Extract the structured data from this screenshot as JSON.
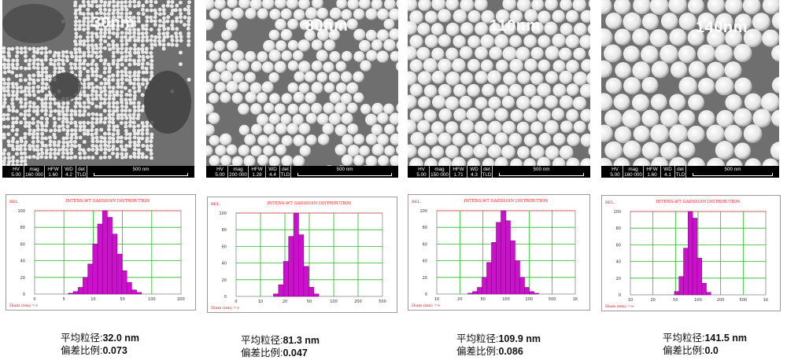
{
  "samples": [
    {
      "sem_label": "30nm",
      "databar": {
        "hv_label": "HV",
        "hv": "5.00 kV",
        "mag_label": "mag",
        "mag": "160 000 x",
        "hfw_label": "HFW",
        "hfw": "1.60 µm",
        "wd_label": "WD",
        "wd": "4.2 mm",
        "det_label": "det",
        "det": "TLD",
        "scale": "500 nm"
      },
      "hist": {
        "title": "INTENS-WT GAUSSIAN DISTRIBUTION",
        "yaxis_label": "REL.",
        "y_ticks": [
          "100",
          "80",
          "60",
          "40",
          "20",
          "0"
        ],
        "x_ticks": [
          "0",
          "5",
          "10",
          "50",
          "100",
          "200"
        ],
        "x_label": "Diam (nm) =>",
        "values": [
          1,
          3,
          8,
          20,
          36,
          60,
          84,
          100,
          92,
          72,
          48,
          28,
          14,
          5,
          2
        ]
      },
      "stats": {
        "mean_label": "平均粒径:",
        "mean_value": "32.0 nm",
        "dev_label": "偏差比例:",
        "dev_value": "0.073"
      }
    },
    {
      "sem_label": "80nm",
      "databar": {
        "hv_label": "HV",
        "hv": "5.00 kV",
        "mag_label": "mag",
        "mag": "200 000 x",
        "hfw_label": "HFW",
        "hfw": "1.28 µm",
        "wd_label": "WD",
        "wd": "4.4 mm",
        "det_label": "det",
        "det": "TLD",
        "scale": "500 nm"
      },
      "hist": {
        "title": "INTENS-WT GAUSSIAN DISTRIBUTION",
        "yaxis_label": "REL.",
        "y_ticks": [
          "100",
          "80",
          "60",
          "40",
          "20",
          "0"
        ],
        "x_ticks": [
          "0",
          "10",
          "20",
          "50",
          "100",
          "200",
          "500"
        ],
        "x_label": "Diam (nm) =>",
        "values": [
          3,
          14,
          42,
          72,
          100,
          74,
          36,
          11,
          3
        ]
      },
      "stats": {
        "mean_label": "平均粒径:",
        "mean_value": "81.3 nm",
        "dev_label": "偏差比例:",
        "dev_value": "0.047"
      }
    },
    {
      "sem_label": "110nm",
      "databar": {
        "hv_label": "HV",
        "hv": "5.00 kV",
        "mag_label": "mag",
        "mag": "150 000 x",
        "hfw_label": "HFW",
        "hfw": "1.71 µm",
        "wd_label": "WD",
        "wd": "4.3 mm",
        "det_label": "det",
        "det": "TLD",
        "scale": "500 nm"
      },
      "hist": {
        "title": "INTENS-WT GAUSSIAN DISTRIBUTION",
        "yaxis_label": "REL.",
        "y_ticks": [
          "100",
          "80",
          "60",
          "40",
          "20",
          "0"
        ],
        "x_ticks": [
          "10",
          "20",
          "50",
          "100",
          "200",
          "500",
          "1K"
        ],
        "x_label": "Diam (nm) =>",
        "values": [
          1,
          3,
          8,
          20,
          38,
          62,
          86,
          100,
          88,
          64,
          40,
          20,
          8,
          3,
          1
        ]
      },
      "stats": {
        "mean_label": "平均粒径:",
        "mean_value": "109.9 nm",
        "dev_label": "偏差比例:",
        "dev_value": "0.086"
      }
    },
    {
      "sem_label": "140nm",
      "databar": {
        "hv_label": "HV",
        "hv": "5.00 kV",
        "mag_label": "mag",
        "mag": "160 000 x",
        "hfw_label": "HFW",
        "hfw": "1.60 µm",
        "wd_label": "WD",
        "wd": "4.1 mm",
        "det_label": "det",
        "det": "TLD",
        "scale": "500 nm"
      },
      "hist": {
        "title": "INTENS-WT GAUSSIAN DISTRIBUTION",
        "yaxis_label": "REL.",
        "y_ticks": [
          "100",
          "80",
          "60",
          "40",
          "20",
          "0"
        ],
        "x_ticks": [
          "10",
          "20",
          "50",
          "100",
          "200",
          "500",
          "1K"
        ],
        "x_label": "Diam (nm) =>",
        "values": [
          4,
          22,
          56,
          100,
          92,
          44,
          14,
          3
        ]
      },
      "stats": {
        "mean_label": "平均粒径:",
        "mean_value": "141.5 nm",
        "dev_label": "偏差比例:",
        "dev_value": "0.0"
      }
    }
  ],
  "colors": {
    "bar": "#cc11cc",
    "bar_stroke": "#7a007a",
    "grid": "#22bb22",
    "title": "#ff2222",
    "axis_text": "#cc2222",
    "sem_bg": "#6f6f6f",
    "sem_particle": "#e4e4e4"
  }
}
